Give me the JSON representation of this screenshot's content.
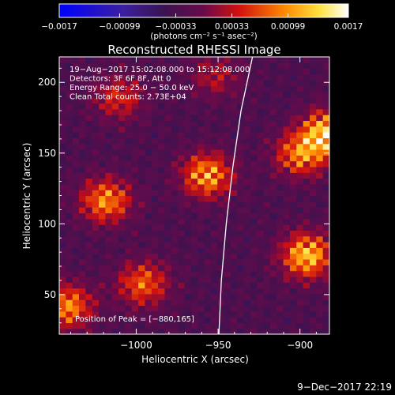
{
  "chart_data": {
    "type": "heatmap",
    "title": "Reconstructed RHESSI Image",
    "xlabel": "Heliocentric X (arcsec)",
    "ylabel": "Heliocentric Y (arcsec)",
    "xlim": [
      -1047,
      -882
    ],
    "ylim": [
      22,
      218
    ],
    "x_ticks": [
      -1000,
      -950,
      -900
    ],
    "x_tick_labels": [
      "−1000",
      "−950",
      "−900"
    ],
    "y_ticks": [
      50,
      100,
      150,
      200
    ],
    "y_tick_labels": [
      "50",
      "100",
      "150",
      "200"
    ],
    "colorbar": {
      "ticks": [
        -0.0017,
        -0.00099,
        -0.00033,
        0.00033,
        0.00099,
        0.0017
      ],
      "tick_labels": [
        "−0.0017",
        "−0.00099",
        "−0.00033",
        "0.00033",
        "0.00099",
        "0.0017"
      ],
      "units": "(photons cm⁻² s⁻¹ asec⁻²)",
      "range": [
        -0.0017,
        0.0017
      ]
    },
    "annotations": [
      "19−Aug−2017 15:02:08.000 to 15:12:08.000",
      "Detectors: 3F 6F 8F, Att 0",
      "Energy Range: 25.0 − 50.0 keV",
      "Clean     Total counts: 2.73E+04"
    ],
    "peak_label": "Position of Peak = [−880,165]",
    "bright_sources": [
      {
        "x": -1018,
        "y": 117,
        "value": 0.0013
      },
      {
        "x": -955,
        "y": 135,
        "value": 0.0014
      },
      {
        "x": -897,
        "y": 150,
        "value": 0.0012
      },
      {
        "x": -880,
        "y": 165,
        "value": 0.0017
      },
      {
        "x": -893,
        "y": 78,
        "value": 0.0016
      },
      {
        "x": -995,
        "y": 58,
        "value": 0.0011
      },
      {
        "x": -1042,
        "y": 42,
        "value": 0.0013
      },
      {
        "x": -1010,
        "y": 190,
        "value": 0.0008
      },
      {
        "x": -950,
        "y": 205,
        "value": 0.0006
      }
    ],
    "limb_curve": [
      {
        "x": -949.5,
        "y": 22
      },
      {
        "x": -948,
        "y": 60
      },
      {
        "x": -945,
        "y": 100
      },
      {
        "x": -941,
        "y": 140
      },
      {
        "x": -936,
        "y": 180
      },
      {
        "x": -929,
        "y": 218
      }
    ],
    "grid": false,
    "colormap": "red-temperature (blue-black-purple-red-yellow-white)"
  },
  "footer": {
    "date": "9−Dec−2017 22:19"
  }
}
